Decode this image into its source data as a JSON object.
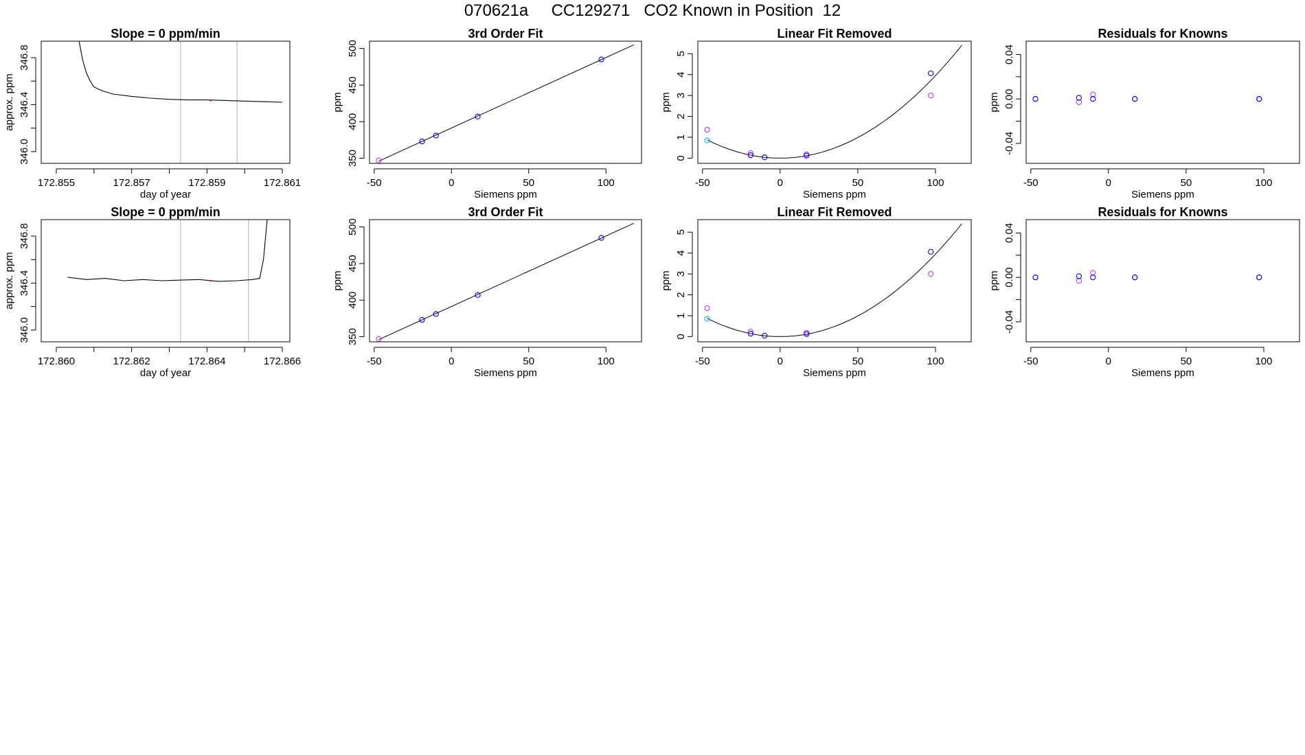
{
  "figure_title": "070621a     CC129271   CO2 Known in Position  12",
  "colors": {
    "line": "#000000",
    "known": "#0000ff",
    "residual": "#cc33ff",
    "extra": "#00bfff",
    "divider": "#bebebe",
    "red_mark": "#ff0000"
  },
  "chart_data": [
    {
      "type": "line",
      "title": "Slope =  0  ppm/min",
      "xlabel": "day of year",
      "ylabel": "approx. ppm",
      "xlim": [
        172.8546,
        172.8612
      ],
      "ylim": [
        345.9,
        346.94
      ],
      "xticks": [
        172.855,
        172.856,
        172.857,
        172.858,
        172.859,
        172.86,
        172.861
      ],
      "xtick_labels": [
        "172.855",
        "",
        "172.857",
        "",
        "172.859",
        "",
        "172.861"
      ],
      "yticks": [
        346.0,
        346.2,
        346.4,
        346.6,
        346.8
      ],
      "ytick_labels": [
        "346.0",
        "",
        "346.4",
        "",
        "346.8"
      ],
      "vlines": [
        172.8583,
        172.8598
      ],
      "series": [
        {
          "name": "trace",
          "x": [
            172.8556,
            172.8557,
            172.8558,
            172.8559,
            172.856,
            172.8562,
            172.8565,
            172.857,
            172.8575,
            172.858,
            172.8585,
            172.859,
            172.8595,
            172.86,
            172.8605,
            172.861
          ],
          "y": [
            346.95,
            346.78,
            346.67,
            346.6,
            346.55,
            346.52,
            346.49,
            346.47,
            346.455,
            346.445,
            346.44,
            346.44,
            346.435,
            346.43,
            346.425,
            346.42
          ]
        }
      ],
      "red_point": [
        172.8591,
        346.435
      ]
    },
    {
      "type": "scatter",
      "title": "3rd Order Fit",
      "xlabel": "Siemens ppm",
      "ylabel": "ppm",
      "xlim": [
        -53,
        123
      ],
      "ylim": [
        343,
        510
      ],
      "xticks": [
        -50,
        0,
        50,
        100
      ],
      "xtick_labels": [
        "-50",
        "0",
        "50",
        "100"
      ],
      "yticks": [
        350,
        400,
        450,
        500
      ],
      "ytick_labels": [
        "350",
        "400",
        "450",
        "500"
      ],
      "fit": {
        "x": [
          -47,
          118
        ],
        "y": [
          346,
          505
        ]
      },
      "points_blue": {
        "x": [
          -19,
          -10,
          17,
          97
        ],
        "y": [
          373,
          381,
          407,
          485
        ]
      },
      "points_purple": {
        "x": [
          -47
        ],
        "y": [
          347
        ]
      }
    },
    {
      "type": "scatter",
      "title": "Linear Fit Removed",
      "xlabel": "Siemens ppm",
      "ylabel": "ppm",
      "xlim": [
        -53,
        123
      ],
      "ylim": [
        -0.25,
        5.6
      ],
      "xticks": [
        -50,
        0,
        50,
        100
      ],
      "xtick_labels": [
        "-50",
        "0",
        "50",
        "100"
      ],
      "yticks": [
        0,
        1,
        2,
        3,
        4,
        5
      ],
      "ytick_labels": [
        "0",
        "1",
        "2",
        "3",
        "4",
        "5"
      ],
      "curve": {
        "x0": -47,
        "x1": 117,
        "a": 0.000395,
        "b": 0.0,
        "c": 0.0
      },
      "points_blue": {
        "x": [
          -19,
          -10,
          17,
          97
        ],
        "y": [
          0.14,
          0.04,
          0.12,
          4.06
        ]
      },
      "points_purple": {
        "x": [
          -47,
          -19,
          17,
          97
        ],
        "y": [
          1.36,
          0.24,
          0.18,
          3.0
        ]
      },
      "points_cyan": {
        "x": [
          -47
        ],
        "y": [
          0.85
        ]
      }
    },
    {
      "type": "scatter",
      "title": "Residuals for Knowns",
      "xlabel": "Siemens ppm",
      "ylabel": "ppm",
      "xlim": [
        -53,
        123
      ],
      "ylim": [
        -0.058,
        0.052
      ],
      "xticks": [
        -50,
        0,
        50,
        100
      ],
      "xtick_labels": [
        "-50",
        "0",
        "50",
        "100"
      ],
      "yticks": [
        -0.04,
        -0.02,
        0.0,
        0.02,
        0.04
      ],
      "ytick_labels": [
        "-0.04",
        "",
        "0.00",
        "",
        "0.04"
      ],
      "points_blue": {
        "x": [
          -47,
          -19,
          -10,
          17,
          97
        ],
        "y": [
          0.0,
          0.001,
          0.0,
          0.0,
          0.0
        ]
      },
      "points_purple": {
        "x": [
          -47,
          -19,
          -10,
          17,
          97
        ],
        "y": [
          0.0,
          -0.003,
          0.004,
          0.0,
          0.0
        ]
      }
    },
    {
      "type": "line",
      "title": "Slope =  0  ppm/min",
      "xlabel": "day of year",
      "ylabel": "approx. ppm",
      "xlim": [
        172.8596,
        172.8662
      ],
      "ylim": [
        345.9,
        346.94
      ],
      "xticks": [
        172.86,
        172.861,
        172.862,
        172.863,
        172.864,
        172.865,
        172.866
      ],
      "xtick_labels": [
        "172.860",
        "",
        "172.862",
        "",
        "172.864",
        "",
        "172.866"
      ],
      "yticks": [
        346.0,
        346.2,
        346.4,
        346.6,
        346.8
      ],
      "ytick_labels": [
        "346.0",
        "",
        "346.4",
        "",
        "346.8"
      ],
      "vlines": [
        172.8633,
        172.8651
      ],
      "series": [
        {
          "name": "trace",
          "x": [
            172.8603,
            172.8608,
            172.8613,
            172.8618,
            172.8623,
            172.8628,
            172.8633,
            172.8638,
            172.8643,
            172.8648,
            172.8652,
            172.8654,
            172.8655,
            172.8656
          ],
          "y": [
            346.45,
            346.43,
            346.44,
            346.42,
            346.43,
            346.42,
            346.425,
            346.43,
            346.415,
            346.42,
            346.43,
            346.44,
            346.6,
            346.95
          ]
        }
      ],
      "red_point": [
        172.8641,
        346.42
      ]
    },
    {
      "type": "scatter",
      "title": "3rd Order Fit",
      "xlabel": "Siemens ppm",
      "ylabel": "ppm",
      "xlim": [
        -53,
        123
      ],
      "ylim": [
        343,
        510
      ],
      "xticks": [
        -50,
        0,
        50,
        100
      ],
      "xtick_labels": [
        "-50",
        "0",
        "50",
        "100"
      ],
      "yticks": [
        350,
        400,
        450,
        500
      ],
      "ytick_labels": [
        "350",
        "400",
        "450",
        "500"
      ],
      "fit": {
        "x": [
          -47,
          118
        ],
        "y": [
          346,
          505
        ]
      },
      "points_blue": {
        "x": [
          -19,
          -10,
          17,
          97
        ],
        "y": [
          373,
          381,
          407,
          485
        ]
      },
      "points_purple": {
        "x": [
          -47
        ],
        "y": [
          347
        ]
      }
    },
    {
      "type": "scatter",
      "title": "Linear Fit Removed",
      "xlabel": "Siemens ppm",
      "ylabel": "ppm",
      "xlim": [
        -53,
        123
      ],
      "ylim": [
        -0.25,
        5.6
      ],
      "xticks": [
        -50,
        0,
        50,
        100
      ],
      "xtick_labels": [
        "-50",
        "0",
        "50",
        "100"
      ],
      "yticks": [
        0,
        1,
        2,
        3,
        4,
        5
      ],
      "ytick_labels": [
        "0",
        "1",
        "2",
        "3",
        "4",
        "5"
      ],
      "curve": {
        "x0": -47,
        "x1": 117,
        "a": 0.000395,
        "b": 0.0,
        "c": 0.0
      },
      "points_blue": {
        "x": [
          -19,
          -10,
          17,
          97
        ],
        "y": [
          0.14,
          0.04,
          0.12,
          4.06
        ]
      },
      "points_purple": {
        "x": [
          -47,
          -19,
          17,
          97
        ],
        "y": [
          1.36,
          0.24,
          0.18,
          3.0
        ]
      },
      "points_cyan": {
        "x": [
          -47
        ],
        "y": [
          0.85
        ]
      }
    },
    {
      "type": "scatter",
      "title": "Residuals for Knowns",
      "xlabel": "Siemens ppm",
      "ylabel": "ppm",
      "xlim": [
        -53,
        123
      ],
      "ylim": [
        -0.058,
        0.052
      ],
      "xticks": [
        -50,
        0,
        50,
        100
      ],
      "xtick_labels": [
        "-50",
        "0",
        "50",
        "100"
      ],
      "yticks": [
        -0.04,
        -0.02,
        0.0,
        0.02,
        0.04
      ],
      "ytick_labels": [
        "-0.04",
        "",
        "0.00",
        "",
        "0.04"
      ],
      "points_blue": {
        "x": [
          -47,
          -19,
          -10,
          17,
          97
        ],
        "y": [
          0.0,
          0.001,
          0.0,
          0.0,
          0.0
        ]
      },
      "points_purple": {
        "x": [
          -47,
          -19,
          -10,
          17,
          97
        ],
        "y": [
          0.0,
          -0.003,
          0.004,
          0.0,
          0.0
        ]
      }
    }
  ]
}
